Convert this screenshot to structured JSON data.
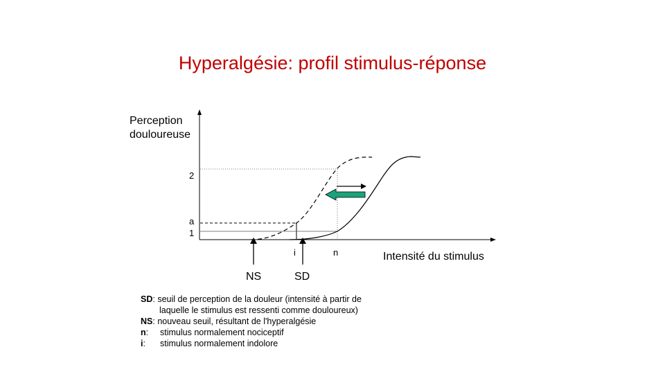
{
  "title": "Hyperalgésie: profil stimulus-réponse",
  "y_axis_label_line1": "Perception",
  "y_axis_label_line2": "douloureuse",
  "x_axis_label": "Intensité du stimulus",
  "y_ticks": {
    "two": "2",
    "a": "a",
    "one": "1"
  },
  "x_ticks": {
    "i": "i",
    "n": "n"
  },
  "arrow_labels": {
    "ns": "NS",
    "sd": "SD"
  },
  "legend": {
    "sd_key": "SD",
    "sd_text_1": ": seuil de perception de la douleur (intensité à partir de",
    "sd_text_2": "laquelle le stimulus est ressenti comme douloureux)",
    "ns_key": "NS",
    "ns_text": ": nouveau seuil, résultant de l'hyperalgésie",
    "n_key": "n",
    "n_text": "stimulus normalement nociceptif",
    "i_key": "i",
    "i_text": "stimulus normalement indolore"
  },
  "colors": {
    "title": "#c00000",
    "shift_arrow": "#1aa37a"
  }
}
